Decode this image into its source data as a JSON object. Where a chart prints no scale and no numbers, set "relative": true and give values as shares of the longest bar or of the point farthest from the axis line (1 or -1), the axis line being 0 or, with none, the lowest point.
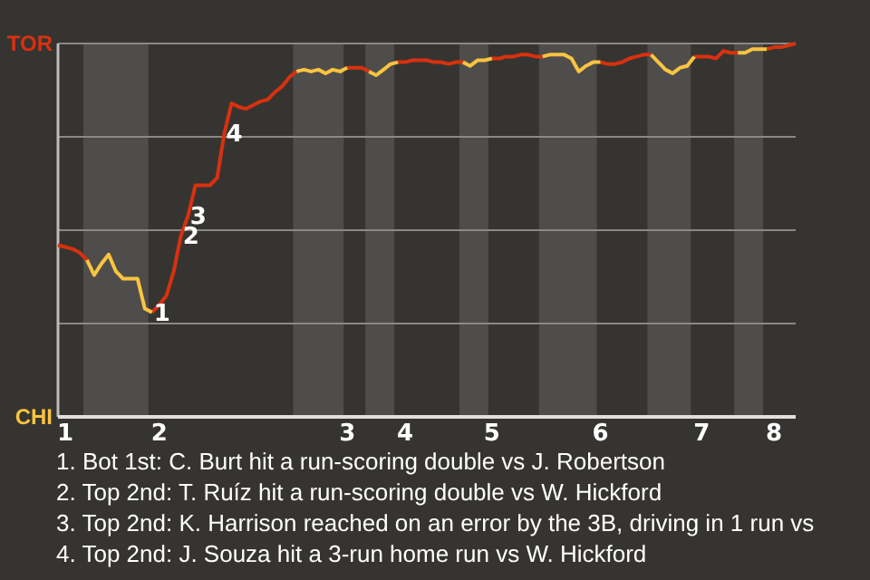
{
  "chart_data": {
    "type": "line",
    "relative": true,
    "categories": [
      null,
      "1",
      null,
      null,
      null,
      null,
      null,
      null,
      null,
      null,
      null,
      null,
      null,
      null,
      "2",
      null,
      null,
      null,
      null,
      null,
      null,
      null,
      null,
      null,
      null,
      null,
      null,
      null,
      null,
      null,
      null,
      null,
      null,
      null,
      null,
      null,
      null,
      null,
      null,
      null,
      "3",
      null,
      null,
      null,
      null,
      null,
      null,
      null,
      "4",
      null,
      null,
      null,
      null,
      null,
      null,
      null,
      null,
      null,
      null,
      null,
      "5",
      null,
      null,
      null,
      null,
      null,
      null,
      null,
      null,
      null,
      null,
      null,
      null,
      null,
      null,
      "6",
      null,
      null,
      null,
      null,
      null,
      null,
      null,
      null,
      null,
      null,
      null,
      null,
      null,
      "7",
      null,
      null,
      null,
      null,
      null,
      null,
      null,
      null,
      null,
      "8",
      null,
      null,
      null
    ],
    "grid": "y",
    "series": [
      {
        "name": "TOR",
        "color": "#d8310f",
        "values": [
          0.46,
          0.455,
          0.45,
          0.44,
          0.42,
          null,
          null,
          null,
          null,
          null,
          null,
          null,
          null,
          0.28,
          0.3,
          0.325,
          0.39,
          0.485,
          0.54,
          0.62,
          0.62,
          0.62,
          0.64,
          0.76,
          0.84,
          0.83,
          0.825,
          0.835,
          0.845,
          0.85,
          0.87,
          0.885,
          0.91,
          0.925,
          null,
          null,
          null,
          null,
          null,
          null,
          0.935,
          0.935,
          0.935,
          0.925,
          null,
          null,
          null,
          0.95,
          0.95,
          0.955,
          0.955,
          0.955,
          0.95,
          0.95,
          0.945,
          0.95,
          0.95,
          null,
          null,
          null,
          0.96,
          0.96,
          0.965,
          0.965,
          0.97,
          0.97,
          0.965,
          0.965,
          null,
          null,
          null,
          null,
          null,
          null,
          null,
          0.95,
          0.945,
          0.945,
          0.95,
          0.96,
          0.965,
          0.97,
          0.97,
          null,
          null,
          null,
          null,
          null,
          0.965,
          0.965,
          0.965,
          0.96,
          0.98,
          0.975,
          0.975,
          null,
          null,
          null,
          0.985,
          0.99,
          0.99,
          0.995,
          1
        ]
      },
      {
        "name": "CHI",
        "color": "#f9c440",
        "values": [
          null,
          null,
          null,
          null,
          0.42,
          0.38,
          0.41,
          0.435,
          0.39,
          0.37,
          0.37,
          0.37,
          0.29,
          0.28,
          null,
          null,
          null,
          null,
          null,
          null,
          null,
          null,
          null,
          null,
          null,
          null,
          null,
          null,
          null,
          null,
          null,
          null,
          null,
          0.925,
          0.93,
          0.925,
          0.93,
          0.92,
          0.93,
          0.925,
          0.935,
          null,
          null,
          0.925,
          0.915,
          0.93,
          0.945,
          0.95,
          null,
          null,
          null,
          null,
          null,
          null,
          null,
          null,
          0.95,
          0.94,
          0.955,
          0.955,
          0.96,
          null,
          null,
          null,
          null,
          null,
          null,
          0.965,
          0.97,
          0.97,
          0.97,
          0.96,
          0.925,
          0.94,
          0.95,
          0.95,
          null,
          null,
          null,
          null,
          null,
          null,
          0.97,
          0.95,
          0.93,
          0.92,
          0.935,
          0.94,
          0.965,
          null,
          null,
          null,
          null,
          null,
          0.975,
          0.975,
          0.985,
          0.985,
          0.985,
          null,
          null,
          null,
          null
        ]
      }
    ],
    "annotations": [
      {
        "text": "1",
        "y": 0.28
      },
      {
        "text": "2",
        "y": 0.485
      },
      {
        "text": "3",
        "y": 0.54
      },
      {
        "text": "4",
        "y": 0.76
      },
      "1. Bot 1st: C. Burt hit a run-scoring double vs J. Robertson",
      "2. Top 2nd: T. Ruíz hit a run-scoring double vs W. Hickford",
      "3. Top 2nd: K. Harrison reached on an error by the 3B, driving in 1 run vs",
      "4. Top 2nd: J. Souza hit a 3-run home run vs W. Hickford"
    ]
  }
}
